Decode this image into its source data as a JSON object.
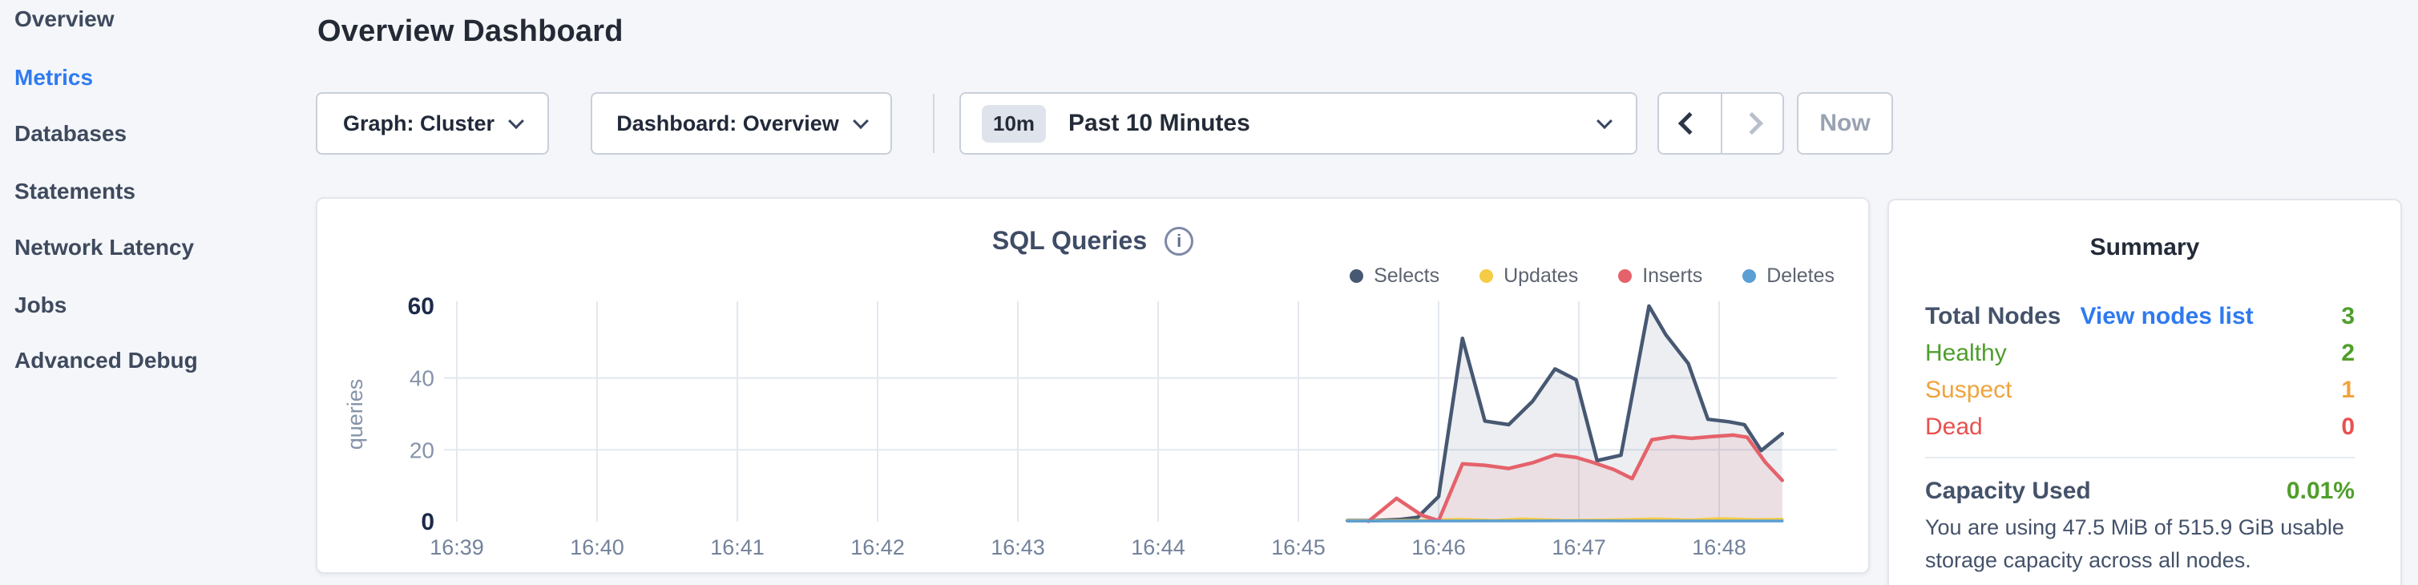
{
  "sidebar": {
    "items": [
      {
        "label": "Overview",
        "active": false
      },
      {
        "label": "Metrics",
        "active": true
      },
      {
        "label": "Databases",
        "active": false
      },
      {
        "label": "Statements",
        "active": false
      },
      {
        "label": "Network Latency",
        "active": false
      },
      {
        "label": "Jobs",
        "active": false
      },
      {
        "label": "Advanced Debug",
        "active": false
      }
    ],
    "active_color": "#2f7af0"
  },
  "header": {
    "title": "Overview Dashboard"
  },
  "toolbar": {
    "graph_dropdown_label": "Graph: Cluster",
    "dashboard_dropdown_label": "Dashboard: Overview",
    "time_badge": "10m",
    "time_label": "Past 10 Minutes",
    "now_label": "Now"
  },
  "chart": {
    "info_icon_glyph": "i"
  },
  "chart_data": {
    "type": "area",
    "title": "SQL Queries",
    "ylabel": "queries",
    "ylim": [
      0,
      60
    ],
    "yticks": [
      0,
      20,
      40,
      60
    ],
    "grid": true,
    "legend_position": "top-right",
    "grid_color": "#e3e8ef",
    "axis_strong_color": "#1c2b4a",
    "axis_muted_color": "#8593a9",
    "xtick_color": "#73829b",
    "x_ticks": [
      {
        "t": 39,
        "label": "16:39"
      },
      {
        "t": 40,
        "label": "16:40"
      },
      {
        "t": 41,
        "label": "16:41"
      },
      {
        "t": 42,
        "label": "16:42"
      },
      {
        "t": 43,
        "label": "16:43"
      },
      {
        "t": 44,
        "label": "16:44"
      },
      {
        "t": 45,
        "label": "16:45"
      },
      {
        "t": 46,
        "label": "16:46"
      },
      {
        "t": 47,
        "label": "16:47"
      },
      {
        "t": 48,
        "label": "16:48"
      }
    ],
    "x_unit": "time (HH:MM), data from ~16:45.3 to ~16:48.5",
    "series": [
      {
        "name": "Selects",
        "color": "#475872",
        "fill": "rgba(71,88,114,0.10)",
        "width": 4.5,
        "points": [
          [
            45.35,
            0.3
          ],
          [
            45.55,
            0.3
          ],
          [
            45.72,
            0.6
          ],
          [
            45.85,
            1.2
          ],
          [
            46.0,
            7
          ],
          [
            46.17,
            51
          ],
          [
            46.33,
            28
          ],
          [
            46.5,
            27
          ],
          [
            46.67,
            33.5
          ],
          [
            46.83,
            42.5
          ],
          [
            46.98,
            39.5
          ],
          [
            47.13,
            17
          ],
          [
            47.3,
            18.5
          ],
          [
            47.5,
            60
          ],
          [
            47.62,
            52
          ],
          [
            47.78,
            44
          ],
          [
            47.92,
            28.5
          ],
          [
            48.07,
            27.8
          ],
          [
            48.18,
            27
          ],
          [
            48.3,
            19.8
          ],
          [
            48.45,
            24.5
          ]
        ]
      },
      {
        "name": "Updates",
        "color": "#f6cb45",
        "fill": null,
        "width": 3.5,
        "points": [
          [
            45.35,
            0.3
          ],
          [
            45.6,
            0.3
          ],
          [
            45.9,
            0.4
          ],
          [
            46.15,
            0.7
          ],
          [
            46.4,
            0.4
          ],
          [
            46.6,
            0.8
          ],
          [
            46.9,
            0.4
          ],
          [
            47.2,
            0.5
          ],
          [
            47.55,
            0.8
          ],
          [
            47.8,
            0.5
          ],
          [
            48.0,
            0.9
          ],
          [
            48.25,
            0.6
          ],
          [
            48.45,
            0.7
          ]
        ]
      },
      {
        "name": "Inserts",
        "color": "#e5626b",
        "fill": "rgba(229,98,107,0.10)",
        "width": 4.5,
        "points": [
          [
            45.5,
            0.1
          ],
          [
            45.7,
            6.5
          ],
          [
            45.88,
            1.8
          ],
          [
            46.0,
            0.3
          ],
          [
            46.17,
            16.1
          ],
          [
            46.33,
            15.7
          ],
          [
            46.5,
            14.8
          ],
          [
            46.67,
            16.4
          ],
          [
            46.83,
            18.6
          ],
          [
            46.98,
            17.9
          ],
          [
            47.1,
            16.5
          ],
          [
            47.25,
            14.5
          ],
          [
            47.38,
            12
          ],
          [
            47.52,
            22.8
          ],
          [
            47.67,
            23.7
          ],
          [
            47.8,
            23.2
          ],
          [
            47.95,
            23.7
          ],
          [
            48.1,
            24.1
          ],
          [
            48.2,
            23.5
          ],
          [
            48.33,
            16.5
          ],
          [
            48.45,
            11.5
          ]
        ]
      },
      {
        "name": "Deletes",
        "color": "#5b9fd4",
        "fill": null,
        "width": 3.5,
        "points": [
          [
            45.35,
            0.2
          ],
          [
            46.0,
            0.2
          ],
          [
            47.0,
            0.25
          ],
          [
            48.0,
            0.2
          ],
          [
            48.45,
            0.2
          ]
        ]
      }
    ]
  },
  "summary": {
    "title": "Summary",
    "rows": [
      {
        "label": "Total Nodes",
        "link": "View nodes list",
        "value": "3",
        "label_color": "#44526a",
        "value_color": "#4f9e2b",
        "link_color": "#2f7af0"
      },
      {
        "label": "Healthy",
        "value": "2",
        "color": "#4f9e2b"
      },
      {
        "label": "Suspect",
        "value": "1",
        "color": "#f0a33c"
      },
      {
        "label": "Dead",
        "value": "0",
        "color": "#e8514e"
      }
    ],
    "capacity": {
      "label": "Capacity Used",
      "value": "0.01%",
      "label_color": "#44526a",
      "value_color": "#4f9e2b",
      "description": "You are using 47.5 MiB of 515.9 GiB usable storage capacity across all nodes."
    }
  }
}
